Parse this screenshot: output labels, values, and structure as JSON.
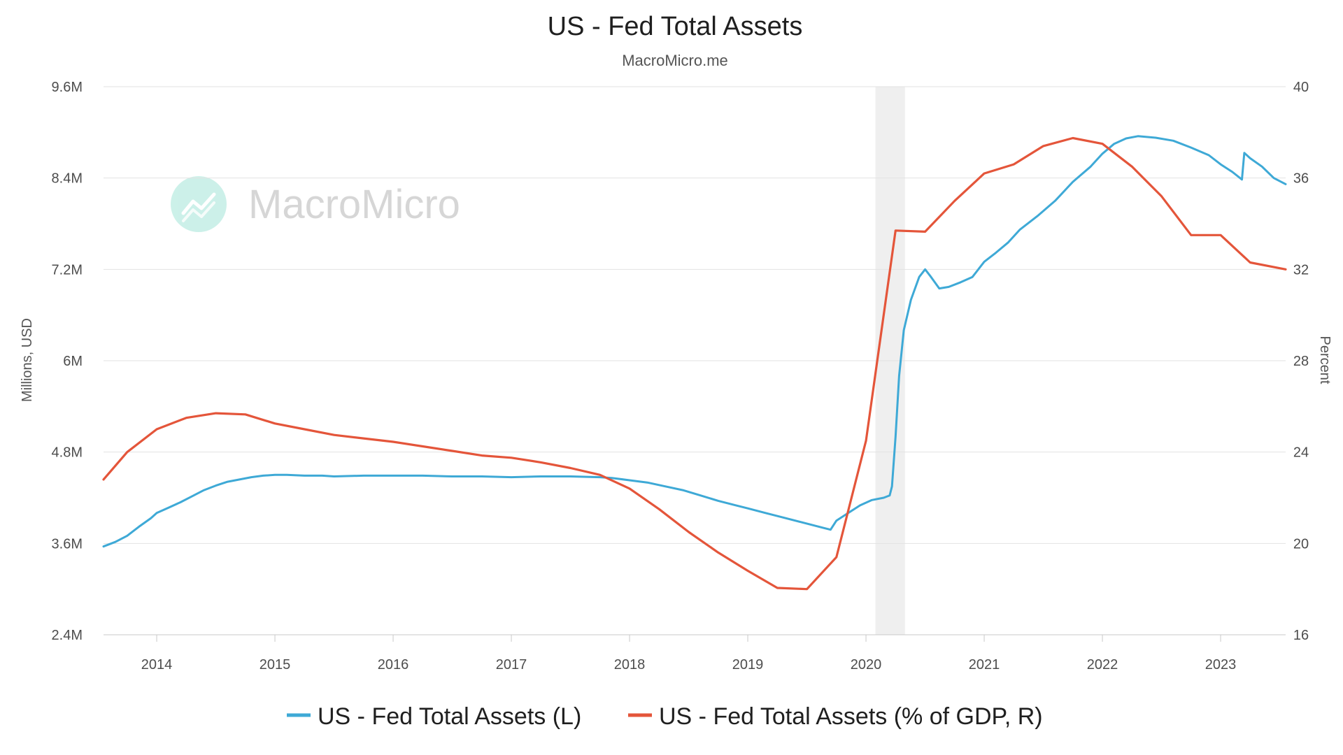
{
  "chart_data": {
    "type": "line",
    "title": "US - Fed Total Assets",
    "subtitle": "MacroMicro.me",
    "watermark": "MacroMicro",
    "x_axis": {
      "range": [
        2013.55,
        2023.55
      ],
      "ticks": [
        "2014",
        "2015",
        "2016",
        "2017",
        "2018",
        "2019",
        "2020",
        "2021",
        "2022",
        "2023"
      ]
    },
    "y_left": {
      "label": "Millions, USD",
      "range": [
        2.4,
        9.6
      ],
      "tick_values": [
        2.4,
        3.6,
        4.8,
        6,
        7.2,
        8.4,
        9.6
      ],
      "tick_labels": [
        "2.4M",
        "3.6M",
        "4.8M",
        "6M",
        "7.2M",
        "8.4M",
        "9.6M"
      ]
    },
    "y_right": {
      "label": "Percent",
      "range": [
        16,
        40
      ],
      "tick_values": [
        16,
        20,
        24,
        28,
        32,
        36,
        40
      ],
      "tick_labels": [
        "16",
        "20",
        "24",
        "28",
        "32",
        "36",
        "40"
      ]
    },
    "grid": true,
    "legend_position": "bottom-center",
    "recession_band": {
      "x": [
        2020.08,
        2020.33
      ],
      "color": "#efefef"
    },
    "series": [
      {
        "name": "US - Fed Total Assets (L)",
        "axis": "left",
        "color": "#3ea9d6",
        "points": [
          [
            2013.55,
            3.56
          ],
          [
            2013.65,
            3.62
          ],
          [
            2013.75,
            3.7
          ],
          [
            2013.85,
            3.82
          ],
          [
            2013.95,
            3.93
          ],
          [
            2014.0,
            4.0
          ],
          [
            2014.1,
            4.07
          ],
          [
            2014.2,
            4.14
          ],
          [
            2014.3,
            4.22
          ],
          [
            2014.4,
            4.3
          ],
          [
            2014.5,
            4.36
          ],
          [
            2014.6,
            4.41
          ],
          [
            2014.7,
            4.44
          ],
          [
            2014.8,
            4.47
          ],
          [
            2014.9,
            4.49
          ],
          [
            2015.0,
            4.5
          ],
          [
            2015.1,
            4.5
          ],
          [
            2015.25,
            4.49
          ],
          [
            2015.4,
            4.49
          ],
          [
            2015.5,
            4.48
          ],
          [
            2015.75,
            4.49
          ],
          [
            2016.0,
            4.49
          ],
          [
            2016.25,
            4.49
          ],
          [
            2016.5,
            4.48
          ],
          [
            2016.75,
            4.48
          ],
          [
            2017.0,
            4.47
          ],
          [
            2017.25,
            4.48
          ],
          [
            2017.5,
            4.48
          ],
          [
            2017.75,
            4.47
          ],
          [
            2017.85,
            4.46
          ],
          [
            2018.0,
            4.43
          ],
          [
            2018.15,
            4.4
          ],
          [
            2018.3,
            4.35
          ],
          [
            2018.45,
            4.3
          ],
          [
            2018.6,
            4.23
          ],
          [
            2018.75,
            4.16
          ],
          [
            2018.9,
            4.1
          ],
          [
            2019.0,
            4.06
          ],
          [
            2019.15,
            4.0
          ],
          [
            2019.3,
            3.94
          ],
          [
            2019.45,
            3.88
          ],
          [
            2019.55,
            3.84
          ],
          [
            2019.65,
            3.8
          ],
          [
            2019.7,
            3.78
          ],
          [
            2019.75,
            3.9
          ],
          [
            2019.85,
            4.0
          ],
          [
            2019.95,
            4.1
          ],
          [
            2020.05,
            4.17
          ],
          [
            2020.15,
            4.2
          ],
          [
            2020.2,
            4.23
          ],
          [
            2020.22,
            4.35
          ],
          [
            2020.25,
            5.0
          ],
          [
            2020.28,
            5.8
          ],
          [
            2020.32,
            6.4
          ],
          [
            2020.38,
            6.8
          ],
          [
            2020.45,
            7.1
          ],
          [
            2020.5,
            7.2
          ],
          [
            2020.55,
            7.1
          ],
          [
            2020.62,
            6.95
          ],
          [
            2020.7,
            6.97
          ],
          [
            2020.8,
            7.03
          ],
          [
            2020.9,
            7.1
          ],
          [
            2021.0,
            7.3
          ],
          [
            2021.1,
            7.42
          ],
          [
            2021.2,
            7.55
          ],
          [
            2021.3,
            7.72
          ],
          [
            2021.45,
            7.9
          ],
          [
            2021.6,
            8.1
          ],
          [
            2021.75,
            8.35
          ],
          [
            2021.9,
            8.55
          ],
          [
            2022.0,
            8.72
          ],
          [
            2022.1,
            8.85
          ],
          [
            2022.2,
            8.92
          ],
          [
            2022.3,
            8.95
          ],
          [
            2022.45,
            8.93
          ],
          [
            2022.6,
            8.89
          ],
          [
            2022.75,
            8.8
          ],
          [
            2022.9,
            8.7
          ],
          [
            2023.0,
            8.58
          ],
          [
            2023.1,
            8.48
          ],
          [
            2023.18,
            8.38
          ],
          [
            2023.2,
            8.73
          ],
          [
            2023.25,
            8.66
          ],
          [
            2023.35,
            8.55
          ],
          [
            2023.45,
            8.4
          ],
          [
            2023.55,
            8.32
          ]
        ]
      },
      {
        "name": "US - Fed Total Assets (% of GDP, R)",
        "axis": "right",
        "color": "#e4553a",
        "points": [
          [
            2013.55,
            22.8
          ],
          [
            2013.75,
            24.0
          ],
          [
            2014.0,
            25.0
          ],
          [
            2014.25,
            25.5
          ],
          [
            2014.5,
            25.7
          ],
          [
            2014.75,
            25.65
          ],
          [
            2015.0,
            25.25
          ],
          [
            2015.25,
            25.0
          ],
          [
            2015.5,
            24.75
          ],
          [
            2015.75,
            24.6
          ],
          [
            2016.0,
            24.45
          ],
          [
            2016.25,
            24.25
          ],
          [
            2016.5,
            24.05
          ],
          [
            2016.75,
            23.85
          ],
          [
            2017.0,
            23.75
          ],
          [
            2017.25,
            23.55
          ],
          [
            2017.5,
            23.3
          ],
          [
            2017.75,
            23.0
          ],
          [
            2018.0,
            22.4
          ],
          [
            2018.25,
            21.5
          ],
          [
            2018.5,
            20.5
          ],
          [
            2018.75,
            19.6
          ],
          [
            2019.0,
            18.8
          ],
          [
            2019.25,
            18.05
          ],
          [
            2019.5,
            18.0
          ],
          [
            2019.75,
            19.4
          ],
          [
            2020.0,
            24.5
          ],
          [
            2020.25,
            33.7
          ],
          [
            2020.5,
            33.65
          ],
          [
            2020.75,
            35.0
          ],
          [
            2021.0,
            36.2
          ],
          [
            2021.25,
            36.6
          ],
          [
            2021.5,
            37.4
          ],
          [
            2021.75,
            37.75
          ],
          [
            2022.0,
            37.5
          ],
          [
            2022.25,
            36.5
          ],
          [
            2022.5,
            35.2
          ],
          [
            2022.75,
            33.5
          ],
          [
            2023.0,
            33.5
          ],
          [
            2023.25,
            32.3
          ],
          [
            2023.55,
            32.0
          ]
        ]
      }
    ]
  }
}
